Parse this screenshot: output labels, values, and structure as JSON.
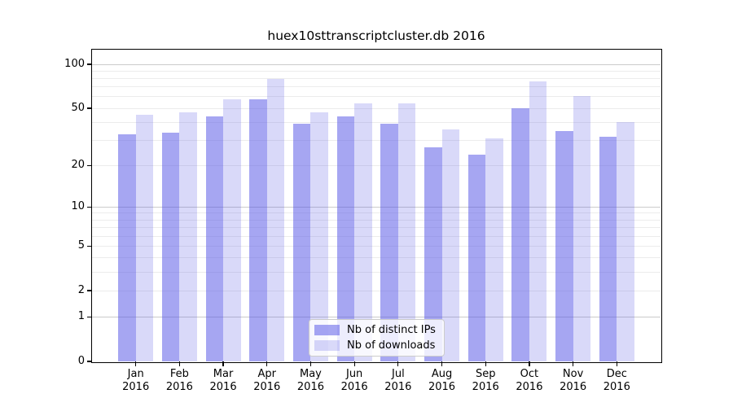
{
  "chart_data": {
    "type": "bar",
    "title": "huex10sttranscriptcluster.db 2016",
    "y_scale": "log1p",
    "grid": true,
    "legend_position": "lower center",
    "categories": [
      "Jan",
      "Feb",
      "Mar",
      "Apr",
      "May",
      "Jun",
      "Jul",
      "Aug",
      "Sep",
      "Oct",
      "Nov",
      "Dec"
    ],
    "category_year": "2016",
    "series": [
      {
        "name": "Nb of distinct IPs",
        "values": [
          33,
          34,
          44,
          58,
          39,
          44,
          39,
          27,
          24,
          50,
          35,
          32
        ],
        "color": "rgba(77,77,229,0.5)"
      },
      {
        "name": "Nb of downloads",
        "values": [
          45,
          47,
          58,
          80,
          47,
          54,
          54,
          36,
          31,
          77,
          61,
          40
        ],
        "color": "rgba(77,77,229,0.21)"
      }
    ],
    "y_ticks": [
      100,
      50,
      20,
      10,
      5,
      2,
      1,
      0
    ],
    "major_grid_values": [
      1,
      10,
      100
    ],
    "minor_grid_values": [
      2,
      3,
      4,
      5,
      6,
      7,
      8,
      9,
      20,
      30,
      40,
      50,
      60,
      70,
      80,
      90
    ],
    "ylim": [
      0,
      126
    ],
    "xlabel": "",
    "ylabel": ""
  },
  "colors": {
    "ips_bar": "rgba(77,77,229,0.5)",
    "downloads_bar": "rgba(77,77,229,0.21)",
    "major_grid": "#cbcbcb",
    "minor_grid": "#ececec",
    "spine": "#000000",
    "background": "#ffffff"
  },
  "legend": {
    "items": [
      {
        "label": "Nb of distinct IPs"
      },
      {
        "label": "Nb of downloads"
      }
    ]
  }
}
